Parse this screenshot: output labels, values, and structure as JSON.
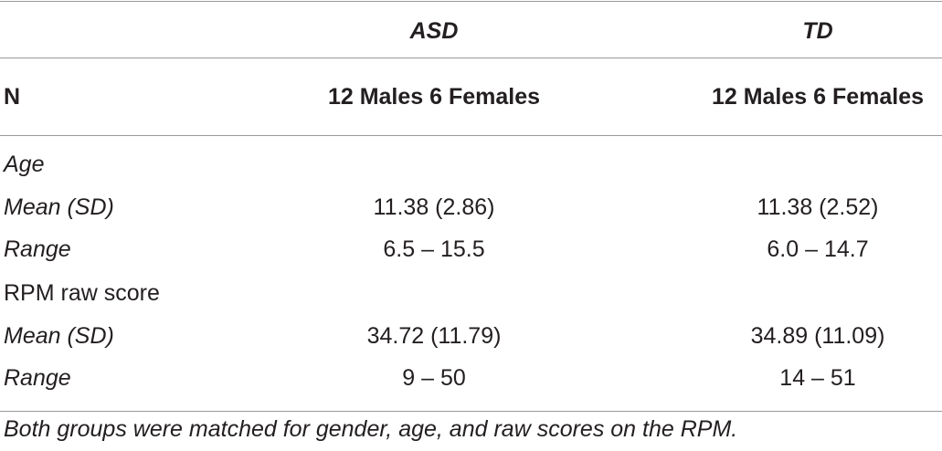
{
  "table": {
    "columns": [
      "ASD",
      "TD"
    ],
    "rows": [
      [
        "N",
        "12 Males 6 Females",
        "12 Males 6 Females"
      ],
      [
        "Age"
      ],
      [
        "Mean (SD)",
        "11.38 (2.86)",
        "11.38 (2.52)"
      ],
      [
        "Range",
        "6.5 – 15.5",
        "6.0 – 14.7"
      ],
      [
        "RPM raw score"
      ],
      [
        "Mean (SD)",
        "34.72 (11.79)",
        "34.89 (11.09)"
      ],
      [
        "Range",
        "9 – 50",
        "14 – 51"
      ]
    ],
    "footnote": "Both groups were matched for gender, age, and raw scores on the RPM."
  }
}
